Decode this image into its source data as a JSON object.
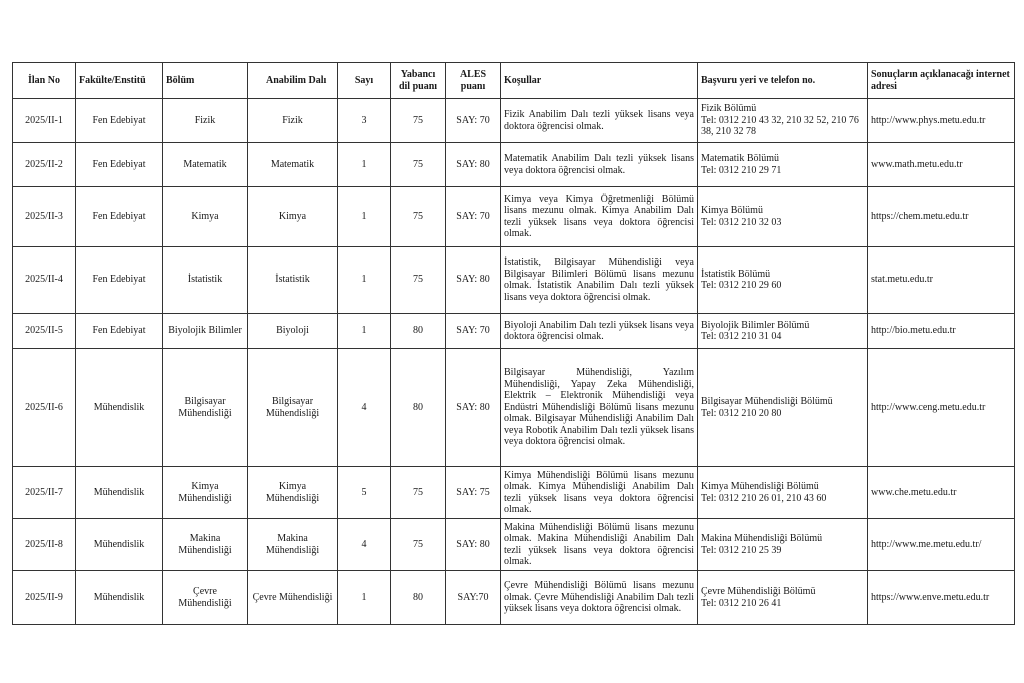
{
  "headers": [
    "İlan No",
    "Fakülte/Enstitü",
    "Bölüm",
    "Anabilim Dalı",
    "Sayı",
    "Yabancı dil puanı",
    "ALES puanı",
    "Koşullar",
    "Başvuru yeri ve telefon no.",
    "Sonuçların açıklanacağı internet adresi"
  ],
  "rows": [
    {
      "ilan": "2025/II-1",
      "fakulte": "Fen Edebiyat",
      "bolum": "Fizik",
      "anabilim": "Fizik",
      "sayi": "3",
      "dil": "75",
      "ales": "SAY: 70",
      "kosullar": "Fizik Anabilim Dalı tezli yüksek lisans veya doktora öğrencisi olmak.",
      "basvuru": "Fizik Bölümü",
      "tel": "Tel: 0312 210 43 32, 210 32 52, 210 76 38, 210 32 78",
      "web": "http://www.phys.metu.edu.tr"
    },
    {
      "ilan": "2025/II-2",
      "fakulte": "Fen Edebiyat",
      "bolum": "Matematik",
      "anabilim": "Matematik",
      "sayi": "1",
      "dil": "75",
      "ales": "SAY: 80",
      "kosullar": "Matematik Anabilim Dalı tezli yüksek lisans veya doktora öğrencisi olmak.",
      "basvuru": "Matematik Bölümü",
      "tel": "Tel: 0312 210 29 71",
      "web": "www.math.metu.edu.tr"
    },
    {
      "ilan": "2025/II-3",
      "fakulte": "Fen Edebiyat",
      "bolum": "Kimya",
      "anabilim": "Kimya",
      "sayi": "1",
      "dil": "75",
      "ales": "SAY: 70",
      "kosullar": "Kimya veya Kimya Öğretmenliği Bölümü lisans mezunu olmak. Kimya Anabilim Dalı tezli yüksek lisans veya doktora öğrencisi olmak.",
      "basvuru": "Kimya Bölümü",
      "tel": "Tel: 0312 210 32 03",
      "web": "https://chem.metu.edu.tr"
    },
    {
      "ilan": "2025/II-4",
      "fakulte": "Fen Edebiyat",
      "bolum": "İstatistik",
      "anabilim": "İstatistik",
      "sayi": "1",
      "dil": "75",
      "ales": "SAY: 80",
      "kosullar": "İstatistik, Bilgisayar Mühendisliği veya Bilgisayar Bilimleri Bölümü lisans mezunu olmak. İstatistik Anabilim Dalı tezli yüksek lisans veya doktora öğrencisi olmak.",
      "basvuru": "İstatistik Bölümü",
      "tel": "Tel: 0312 210 29 60",
      "web": "stat.metu.edu.tr"
    },
    {
      "ilan": "2025/II-5",
      "fakulte": "Fen Edebiyat",
      "bolum": "Biyolojik Bilimler",
      "anabilim": "Biyoloji",
      "sayi": "1",
      "dil": "80",
      "ales": "SAY: 70",
      "kosullar": "Biyoloji Anabilim Dalı tezli yüksek lisans veya doktora öğrencisi olmak.",
      "basvuru": "Biyolojik Bilimler Bölümü",
      "tel": "Tel: 0312 210 31 04",
      "web": "http://bio.metu.edu.tr"
    },
    {
      "ilan": "2025/II-6",
      "fakulte": "Mühendislik",
      "bolum": "Bilgisayar Mühendisliği",
      "anabilim": "Bilgisayar Mühendisliği",
      "sayi": "4",
      "dil": "80",
      "ales": "SAY: 80",
      "kosullar": "Bilgisayar Mühendisliği, Yazılım Mühendisliği, Yapay Zeka Mühendisliği, Elektrik – Elektronik Mühendisliği veya Endüstri Mühendisliği Bölümü lisans mezunu olmak. Bilgisayar Mühendisliği Anabilim Dalı veya Robotik Anabilim Dalı tezli yüksek lisans veya doktora öğrencisi olmak.",
      "basvuru": "Bilgisayar Mühendisliği Bölümü",
      "tel": "Tel: 0312 210 20 80",
      "web": "http://www.ceng.metu.edu.tr"
    },
    {
      "ilan": "2025/II-7",
      "fakulte": "Mühendislik",
      "bolum": "Kimya Mühendisliği",
      "anabilim": "Kimya Mühendisliği",
      "sayi": "5",
      "dil": "75",
      "ales": "SAY: 75",
      "kosullar": "Kimya Mühendisliği Bölümü lisans mezunu olmak. Kimya Mühendisliği Anabilim Dalı tezli yüksek lisans veya doktora öğrencisi olmak.",
      "basvuru": "Kimya Mühendisliği Bölümü",
      "tel": "Tel: 0312 210 26 01, 210 43 60",
      "web": "www.che.metu.edu.tr"
    },
    {
      "ilan": "2025/II-8",
      "fakulte": "Mühendislik",
      "bolum": "Makina Mühendisliği",
      "anabilim": "Makina Mühendisliği",
      "sayi": "4",
      "dil": "75",
      "ales": "SAY: 80",
      "kosullar": "Makina Mühendisliği Bölümü lisans mezunu olmak. Makina Mühendisliği Anabilim Dalı tezli yüksek lisans veya doktora öğrencisi olmak.",
      "basvuru": "Makina Mühendisliği Bölümü",
      "tel": "Tel: 0312 210 25 39",
      "web": "http://www.me.metu.edu.tr/"
    },
    {
      "ilan": "2025/II-9",
      "fakulte": "Mühendislik",
      "bolum": "Çevre Mühendisliği",
      "anabilim": "Çevre Mühendisliği",
      "sayi": "1",
      "dil": "80",
      "ales": "SAY:70",
      "kosullar": "Çevre Mühendisliği Bölümü lisans mezunu olmak. Çevre Mühendisliği Anabilim Dalı tezli yüksek lisans veya doktora öğrencisi olmak.",
      "basvuru": "Çevre Mühendisliği Bölümü",
      "tel": "Tel: 0312 210 26 41",
      "web": "https://www.enve.metu.edu.tr"
    }
  ]
}
